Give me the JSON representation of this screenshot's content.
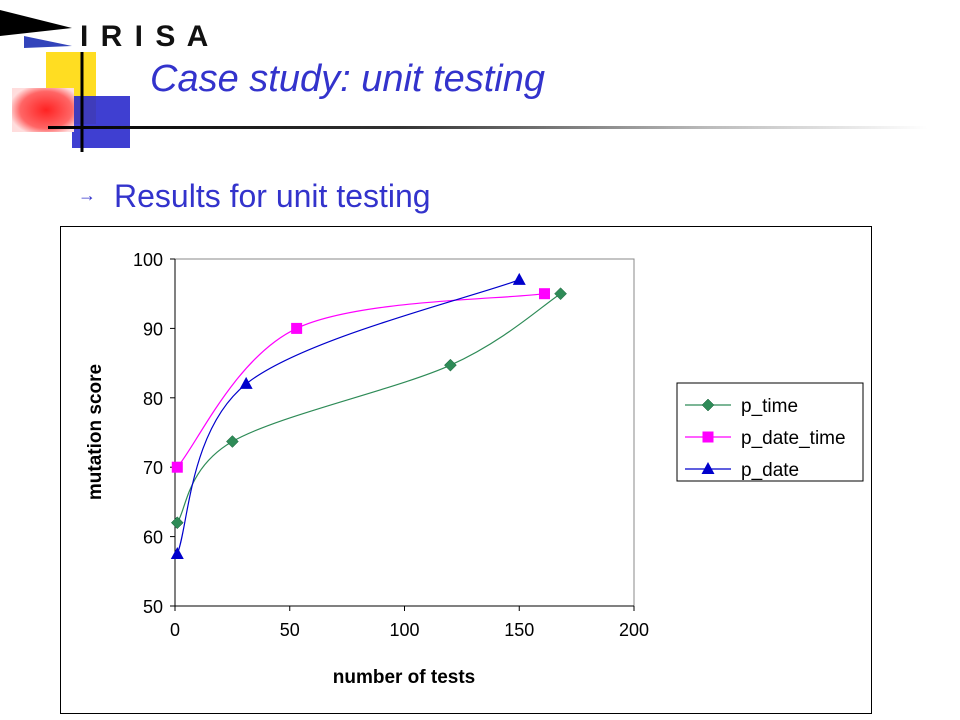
{
  "logo": {
    "text": "I R I S A"
  },
  "slide": {
    "title": "Case study: unit testing",
    "bullet": "Results for unit testing"
  },
  "colors": {
    "title": "#3333cc",
    "p_time": "#2e8b57",
    "p_date_time": "#ff00ff",
    "p_date": "#0000cc"
  },
  "chart_data": {
    "type": "line",
    "title": "",
    "xlabel": "number of tests",
    "ylabel": "mutation score",
    "xlim": [
      0,
      200
    ],
    "ylim": [
      50,
      100
    ],
    "xticks": [
      0,
      50,
      100,
      150,
      200
    ],
    "yticks": [
      50,
      60,
      70,
      80,
      90,
      100
    ],
    "grid": false,
    "legend": "right",
    "series": [
      {
        "name": "p_time",
        "marker": "diamond",
        "color": "#2e8b57",
        "points": [
          [
            1,
            62
          ],
          [
            25,
            73.7
          ],
          [
            120,
            84.7
          ],
          [
            168,
            95
          ]
        ]
      },
      {
        "name": "p_date_time",
        "marker": "square",
        "color": "#ff00ff",
        "points": [
          [
            1,
            70
          ],
          [
            53,
            90
          ],
          [
            161,
            95
          ]
        ]
      },
      {
        "name": "p_date",
        "marker": "triangle",
        "color": "#0000cc",
        "points": [
          [
            1,
            57.5
          ],
          [
            31,
            82
          ],
          [
            150,
            97
          ]
        ]
      }
    ]
  }
}
